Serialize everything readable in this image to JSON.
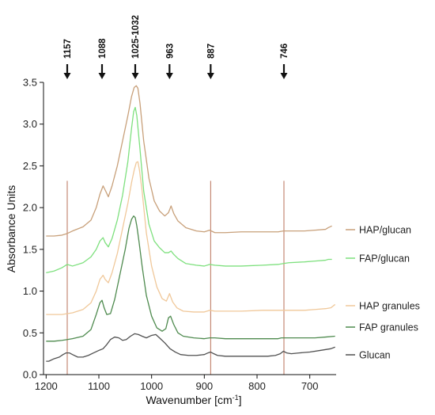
{
  "chart_data": {
    "type": "line",
    "title": "",
    "xlabel": "Wavenumber [cm",
    "xlabel_sup": "-1",
    "xlabel_suffix": "]",
    "ylabel": "Absorbance Units",
    "xlim": [
      1205,
      650
    ],
    "ylim": [
      0,
      3.5
    ],
    "x_ticks": [
      1200,
      1100,
      1000,
      900,
      800,
      700
    ],
    "y_ticks": [
      0.0,
      0.5,
      1.0,
      1.5,
      2.0,
      2.5,
      3.0,
      3.5
    ],
    "y_tick_labels": [
      "0.0",
      "0.5",
      "1.0",
      "1.5",
      "2.0",
      "2.5",
      "3.0",
      "3.5"
    ],
    "grid": false,
    "legend_position": "right",
    "annotations": [
      {
        "label": "1157",
        "x": 1160
      },
      {
        "label": "1088",
        "x": 1094
      },
      {
        "label": "1025-1032",
        "x": 1031
      },
      {
        "label": "963",
        "x": 966
      },
      {
        "label": "887",
        "x": 888
      },
      {
        "label": "746",
        "x": 749
      }
    ],
    "reference_lines": [
      {
        "x": 1160,
        "y_top": 2.32
      },
      {
        "x": 888,
        "y_top": 2.32
      },
      {
        "x": 749,
        "y_top": 2.32
      }
    ],
    "series": [
      {
        "name": "HAP/glucan",
        "color": "#c8a07a",
        "x": [
          1200,
          1185,
          1170,
          1160,
          1150,
          1130,
          1115,
          1105,
          1098,
          1092,
          1088,
          1082,
          1075,
          1065,
          1055,
          1045,
          1038,
          1033,
          1029,
          1026,
          1022,
          1015,
          1005,
          995,
          985,
          975,
          968,
          963,
          958,
          950,
          935,
          915,
          900,
          890,
          880,
          860,
          830,
          790,
          760,
          750,
          740,
          710,
          690,
          670,
          665,
          658
        ],
        "y": [
          1.66,
          1.66,
          1.67,
          1.69,
          1.72,
          1.77,
          1.85,
          2.0,
          2.16,
          2.26,
          2.21,
          2.13,
          2.26,
          2.5,
          2.8,
          3.1,
          3.33,
          3.44,
          3.46,
          3.43,
          3.25,
          2.8,
          2.35,
          2.08,
          1.96,
          1.9,
          1.94,
          2.02,
          1.93,
          1.84,
          1.76,
          1.72,
          1.71,
          1.73,
          1.7,
          1.7,
          1.71,
          1.71,
          1.71,
          1.72,
          1.72,
          1.72,
          1.73,
          1.74,
          1.76,
          1.78
        ]
      },
      {
        "name": "FAP/glucan",
        "color": "#7ee07e",
        "x": [
          1200,
          1185,
          1170,
          1160,
          1150,
          1130,
          1115,
          1105,
          1098,
          1092,
          1088,
          1082,
          1075,
          1065,
          1055,
          1045,
          1038,
          1034,
          1031,
          1028,
          1022,
          1015,
          1005,
          995,
          985,
          975,
          968,
          963,
          958,
          950,
          935,
          915,
          900,
          890,
          880,
          860,
          830,
          790,
          760,
          750,
          740,
          710,
          690,
          670,
          665,
          658
        ],
        "y": [
          1.22,
          1.24,
          1.28,
          1.32,
          1.3,
          1.34,
          1.41,
          1.5,
          1.6,
          1.64,
          1.58,
          1.53,
          1.63,
          1.85,
          2.15,
          2.55,
          2.95,
          3.15,
          3.2,
          3.1,
          2.7,
          2.2,
          1.8,
          1.6,
          1.52,
          1.46,
          1.46,
          1.48,
          1.44,
          1.39,
          1.33,
          1.31,
          1.3,
          1.32,
          1.31,
          1.3,
          1.3,
          1.31,
          1.32,
          1.33,
          1.34,
          1.35,
          1.36,
          1.37,
          1.38,
          1.38
        ]
      },
      {
        "name": "HAP granules",
        "color": "#f0c89a",
        "x": [
          1200,
          1185,
          1170,
          1160,
          1150,
          1130,
          1115,
          1105,
          1098,
          1092,
          1088,
          1082,
          1075,
          1065,
          1055,
          1045,
          1038,
          1033,
          1029,
          1026,
          1023,
          1018,
          1010,
          1000,
          990,
          980,
          972,
          966,
          960,
          952,
          940,
          920,
          900,
          890,
          880,
          860,
          830,
          790,
          760,
          750,
          740,
          710,
          690,
          670,
          660,
          652
        ],
        "y": [
          0.72,
          0.72,
          0.72,
          0.73,
          0.74,
          0.78,
          0.86,
          1.0,
          1.14,
          1.19,
          1.14,
          1.1,
          1.22,
          1.45,
          1.75,
          2.05,
          2.3,
          2.45,
          2.54,
          2.55,
          2.45,
          2.2,
          1.7,
          1.3,
          1.05,
          0.91,
          0.88,
          0.97,
          0.87,
          0.8,
          0.76,
          0.75,
          0.75,
          0.77,
          0.76,
          0.76,
          0.76,
          0.77,
          0.77,
          0.77,
          0.77,
          0.77,
          0.78,
          0.79,
          0.8,
          0.84
        ]
      },
      {
        "name": "FAP granules",
        "color": "#4e8a4e",
        "x": [
          1200,
          1185,
          1170,
          1160,
          1150,
          1130,
          1115,
          1105,
          1098,
          1094,
          1090,
          1085,
          1078,
          1070,
          1060,
          1050,
          1043,
          1038,
          1034,
          1031,
          1028,
          1024,
          1018,
          1010,
          1000,
          990,
          980,
          973,
          968,
          964,
          958,
          950,
          940,
          920,
          900,
          890,
          880,
          860,
          830,
          790,
          760,
          754,
          749,
          744,
          735,
          710,
          690,
          670,
          652
        ],
        "y": [
          0.4,
          0.4,
          0.41,
          0.42,
          0.43,
          0.46,
          0.54,
          0.72,
          0.86,
          0.89,
          0.8,
          0.72,
          0.73,
          0.9,
          1.2,
          1.5,
          1.75,
          1.86,
          1.9,
          1.88,
          1.78,
          1.6,
          1.3,
          0.95,
          0.7,
          0.56,
          0.52,
          0.55,
          0.68,
          0.7,
          0.6,
          0.5,
          0.46,
          0.44,
          0.43,
          0.44,
          0.44,
          0.43,
          0.43,
          0.43,
          0.43,
          0.44,
          0.44,
          0.44,
          0.44,
          0.44,
          0.44,
          0.45,
          0.46
        ]
      },
      {
        "name": "Glucan",
        "color": "#505050",
        "x": [
          1200,
          1195,
          1185,
          1175,
          1168,
          1162,
          1156,
          1150,
          1140,
          1130,
          1120,
          1110,
          1100,
          1092,
          1085,
          1078,
          1070,
          1062,
          1055,
          1048,
          1040,
          1032,
          1025,
          1018,
          1010,
          1000,
          992,
          985,
          975,
          965,
          955,
          945,
          930,
          915,
          900,
          893,
          888,
          882,
          875,
          860,
          840,
          820,
          800,
          780,
          765,
          756,
          750,
          744,
          735,
          720,
          700,
          680,
          660,
          652
        ],
        "y": [
          0.16,
          0.16,
          0.19,
          0.21,
          0.24,
          0.26,
          0.26,
          0.24,
          0.21,
          0.21,
          0.23,
          0.26,
          0.29,
          0.31,
          0.36,
          0.42,
          0.45,
          0.44,
          0.41,
          0.42,
          0.46,
          0.49,
          0.48,
          0.46,
          0.44,
          0.47,
          0.48,
          0.44,
          0.38,
          0.31,
          0.27,
          0.24,
          0.23,
          0.23,
          0.24,
          0.26,
          0.27,
          0.25,
          0.23,
          0.22,
          0.22,
          0.22,
          0.22,
          0.22,
          0.23,
          0.25,
          0.28,
          0.26,
          0.25,
          0.26,
          0.27,
          0.29,
          0.31,
          0.33
        ]
      }
    ]
  }
}
